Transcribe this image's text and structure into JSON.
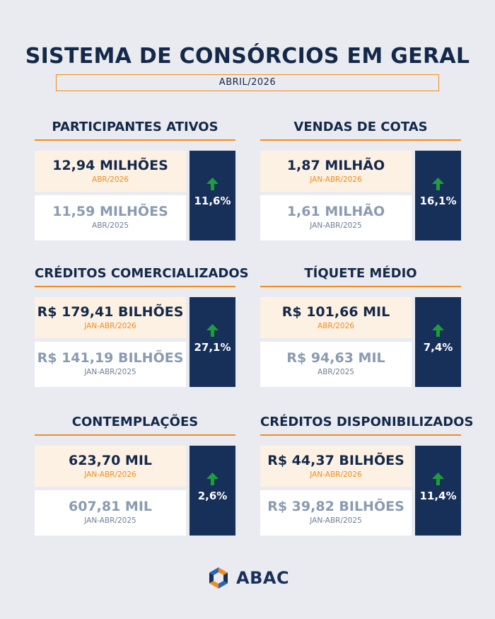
{
  "header": {
    "title": "SISTEMA DE CONSÓRCIOS EM GERAL",
    "period": "ABRIL/2026"
  },
  "blocks": [
    {
      "title": "PARTICIPANTES ATIVOS",
      "current_value": "12,94 MILHÕES",
      "current_label": "ABR/2026",
      "previous_value": "11,59 MILHÕES",
      "previous_label": "ABR/2025",
      "variation": "11,6%"
    },
    {
      "title": "VENDAS DE COTAS",
      "current_value": "1,87 MILHÃO",
      "current_label": "JAN-ABR/2026",
      "previous_value": "1,61 MILHÃO",
      "previous_label": "JAN-ABR/2025",
      "variation": "16,1%"
    },
    {
      "title": "CRÉDITOS COMERCIALIZADOS",
      "current_value": "R$ 179,41 BILHÕES",
      "current_label": "JAN-ABR/2026",
      "previous_value": "R$ 141,19 BILHÕES",
      "previous_label": "JAN-ABR/2025",
      "variation": "27,1%"
    },
    {
      "title": "TÍQUETE MÉDIO",
      "current_value": "R$ 101,66 MIL",
      "current_label": "ABR/2026",
      "previous_value": "R$ 94,63 MIL",
      "previous_label": "ABR/2025",
      "variation": "7,4%"
    },
    {
      "title": "CONTEMPLAÇÕES",
      "current_value": "623,70 MIL",
      "current_label": "JAN-ABR/2026",
      "previous_value": "607,81 MIL",
      "previous_label": "JAN-ABR/2025",
      "variation": "2,6%"
    },
    {
      "title": "CRÉDITOS DISPONIBILIZADOS",
      "current_value": "R$ 44,37 BILHÕES",
      "current_label": "JAN-ABR/2026",
      "previous_value": "R$ 39,82 BILHÕES",
      "previous_label": "JAN-ABR/2025",
      "variation": "11,4%"
    }
  ],
  "footer": {
    "logo_text": "ABAC",
    "logo_icon": "abac-logo-icon"
  },
  "colors": {
    "navy": "#17305a",
    "orange": "#f28c1e",
    "arrow_green": "#1e9e3a",
    "background": "#e9ebf0"
  }
}
